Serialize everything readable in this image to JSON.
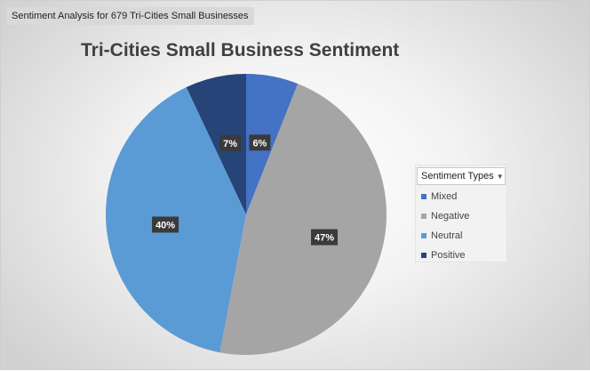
{
  "caption": "Sentiment Analysis for 679 Tri-Cities Small Businesses",
  "legend_header": "Sentiment Types",
  "legend_arrow_icon": "dropdown-triangle-icon",
  "chart_data": {
    "type": "pie",
    "title": "Tri-Cities Small Business Sentiment",
    "legend_position": "right",
    "slices": [
      {
        "label": "Mixed",
        "value": 6,
        "display": "6%",
        "color": "#4472c4"
      },
      {
        "label": "Negative",
        "value": 47,
        "display": "47%",
        "color": "#a5a5a5"
      },
      {
        "label": "Neutral",
        "value": 40,
        "display": "40%",
        "color": "#5b9bd5"
      },
      {
        "label": "Positive",
        "value": 7,
        "display": "7%",
        "color": "#264478"
      }
    ]
  }
}
